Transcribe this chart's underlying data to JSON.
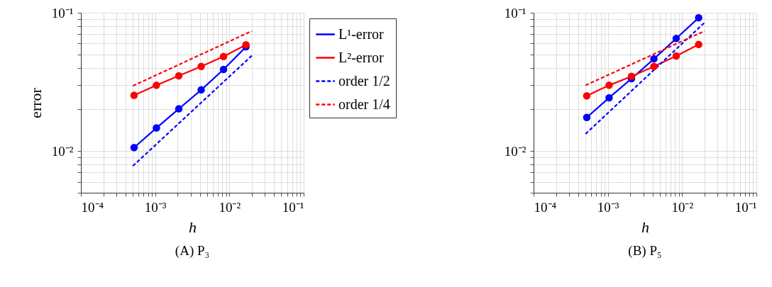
{
  "chart_data": [
    {
      "type": "line",
      "title": "(A) P₃",
      "xlabel": "h",
      "ylabel": "error",
      "log": "xy",
      "grid": true,
      "legend": "right",
      "marker": "circle",
      "xlim": [
        0.0001,
        0.1
      ],
      "ylim": [
        0.005,
        0.1
      ],
      "xticks": [
        {
          "value": 0.0001,
          "label": "10⁻⁴"
        },
        {
          "value": 0.0002,
          "label": null
        },
        {
          "value": 0.0003,
          "label": null
        },
        {
          "value": 0.0004,
          "label": null
        },
        {
          "value": 0.0005,
          "label": null
        },
        {
          "value": 0.0006,
          "label": null
        },
        {
          "value": 0.0007,
          "label": null
        },
        {
          "value": 0.0008,
          "label": null
        },
        {
          "value": 0.0009,
          "label": null
        },
        {
          "value": 0.001,
          "label": "10⁻³"
        },
        {
          "value": 0.002,
          "label": null
        },
        {
          "value": 0.003,
          "label": null
        },
        {
          "value": 0.004,
          "label": null
        },
        {
          "value": 0.005,
          "label": null
        },
        {
          "value": 0.006,
          "label": null
        },
        {
          "value": 0.007,
          "label": null
        },
        {
          "value": 0.008,
          "label": null
        },
        {
          "value": 0.009,
          "label": null
        },
        {
          "value": 0.01,
          "label": "10⁻²"
        },
        {
          "value": 0.02,
          "label": null
        },
        {
          "value": 0.03,
          "label": null
        },
        {
          "value": 0.04,
          "label": null
        },
        {
          "value": 0.05,
          "label": null
        },
        {
          "value": 0.06,
          "label": null
        },
        {
          "value": 0.07,
          "label": null
        },
        {
          "value": 0.08,
          "label": null
        },
        {
          "value": 0.09,
          "label": null
        },
        {
          "value": 0.1,
          "label": "10⁻¹"
        }
      ],
      "yticks": [
        {
          "value": 0.005,
          "label": null
        },
        {
          "value": 0.006,
          "label": null
        },
        {
          "value": 0.007,
          "label": null
        },
        {
          "value": 0.008,
          "label": null
        },
        {
          "value": 0.009,
          "label": null
        },
        {
          "value": 0.01,
          "label": "10⁻²"
        },
        {
          "value": 0.02,
          "label": null
        },
        {
          "value": 0.03,
          "label": null
        },
        {
          "value": 0.04,
          "label": null
        },
        {
          "value": 0.05,
          "label": null
        },
        {
          "value": 0.06,
          "label": null
        },
        {
          "value": 0.07,
          "label": null
        },
        {
          "value": 0.08,
          "label": null
        },
        {
          "value": 0.09,
          "label": null
        },
        {
          "value": 0.1,
          "label": "10⁻¹"
        }
      ],
      "series": [
        {
          "name": "L¹-error",
          "color": "#0000ff",
          "line_style": "solid",
          "x": [
            0.00052,
            0.00104,
            0.00208,
            0.00417,
            0.00833,
            0.0167
          ],
          "values": [
            0.0106,
            0.0147,
            0.0202,
            0.0277,
            0.0389,
            0.0567
          ]
        },
        {
          "name": "L²-error",
          "color": "#ff0000",
          "line_style": "solid",
          "x": [
            0.00052,
            0.00104,
            0.00208,
            0.00417,
            0.00833,
            0.0167
          ],
          "values": [
            0.0253,
            0.0299,
            0.035,
            0.0409,
            0.0483,
            0.0586
          ]
        },
        {
          "name": "order 1/2",
          "color": "#0000ff",
          "line_style": "dashed",
          "marker": "none",
          "x": [
            0.0005,
            0.02
          ],
          "values": [
            0.0078,
            0.0489
          ]
        },
        {
          "name": "order 1/4",
          "color": "#ff0000",
          "line_style": "dashed",
          "marker": "none",
          "x": [
            0.0005,
            0.02
          ],
          "values": [
            0.0296,
            0.0738
          ]
        }
      ]
    },
    {
      "type": "line",
      "title": "(B) P₅",
      "xlabel": "h",
      "log": "xy",
      "grid": true,
      "legend": false,
      "marker": "circle",
      "xlim": [
        0.0001,
        0.1
      ],
      "ylim": [
        0.005,
        0.1
      ],
      "xticks": [
        {
          "value": 0.0001,
          "label": "10⁻⁴"
        },
        {
          "value": 0.0002,
          "label": null
        },
        {
          "value": 0.0003,
          "label": null
        },
        {
          "value": 0.0004,
          "label": null
        },
        {
          "value": 0.0005,
          "label": null
        },
        {
          "value": 0.0006,
          "label": null
        },
        {
          "value": 0.0007,
          "label": null
        },
        {
          "value": 0.0008,
          "label": null
        },
        {
          "value": 0.0009,
          "label": null
        },
        {
          "value": 0.001,
          "label": "10⁻³"
        },
        {
          "value": 0.002,
          "label": null
        },
        {
          "value": 0.003,
          "label": null
        },
        {
          "value": 0.004,
          "label": null
        },
        {
          "value": 0.005,
          "label": null
        },
        {
          "value": 0.006,
          "label": null
        },
        {
          "value": 0.007,
          "label": null
        },
        {
          "value": 0.008,
          "label": null
        },
        {
          "value": 0.009,
          "label": null
        },
        {
          "value": 0.01,
          "label": "10⁻²"
        },
        {
          "value": 0.02,
          "label": null
        },
        {
          "value": 0.03,
          "label": null
        },
        {
          "value": 0.04,
          "label": null
        },
        {
          "value": 0.05,
          "label": null
        },
        {
          "value": 0.06,
          "label": null
        },
        {
          "value": 0.07,
          "label": null
        },
        {
          "value": 0.08,
          "label": null
        },
        {
          "value": 0.09,
          "label": null
        },
        {
          "value": 0.1,
          "label": "10⁻¹"
        }
      ],
      "yticks": [
        {
          "value": 0.005,
          "label": null
        },
        {
          "value": 0.006,
          "label": null
        },
        {
          "value": 0.007,
          "label": null
        },
        {
          "value": 0.008,
          "label": null
        },
        {
          "value": 0.009,
          "label": null
        },
        {
          "value": 0.01,
          "label": "10⁻²"
        },
        {
          "value": 0.02,
          "label": null
        },
        {
          "value": 0.03,
          "label": null
        },
        {
          "value": 0.04,
          "label": null
        },
        {
          "value": 0.05,
          "label": null
        },
        {
          "value": 0.06,
          "label": null
        },
        {
          "value": 0.07,
          "label": null
        },
        {
          "value": 0.08,
          "label": null
        },
        {
          "value": 0.09,
          "label": null
        },
        {
          "value": 0.1,
          "label": "10⁻¹"
        }
      ],
      "series": [
        {
          "color": "#0000ff",
          "line_style": "solid",
          "x": [
            0.00052,
            0.00104,
            0.00208,
            0.00417,
            0.00833,
            0.0167
          ],
          "values": [
            0.0175,
            0.0243,
            0.0334,
            0.0464,
            0.0652,
            0.092
          ]
        },
        {
          "color": "#ff0000",
          "line_style": "solid",
          "x": [
            0.00052,
            0.00104,
            0.00208,
            0.00417,
            0.00833,
            0.0167
          ],
          "values": [
            0.0251,
            0.0299,
            0.0347,
            0.0409,
            0.0487,
            0.059
          ]
        },
        {
          "color": "#0000ff",
          "line_style": "dashed",
          "marker": "none",
          "x": [
            0.0005,
            0.02
          ],
          "values": [
            0.0133,
            0.0848
          ]
        },
        {
          "color": "#ff0000",
          "line_style": "dashed",
          "marker": "none",
          "x": [
            0.0005,
            0.02
          ],
          "values": [
            0.0299,
            0.0738
          ]
        }
      ]
    }
  ]
}
